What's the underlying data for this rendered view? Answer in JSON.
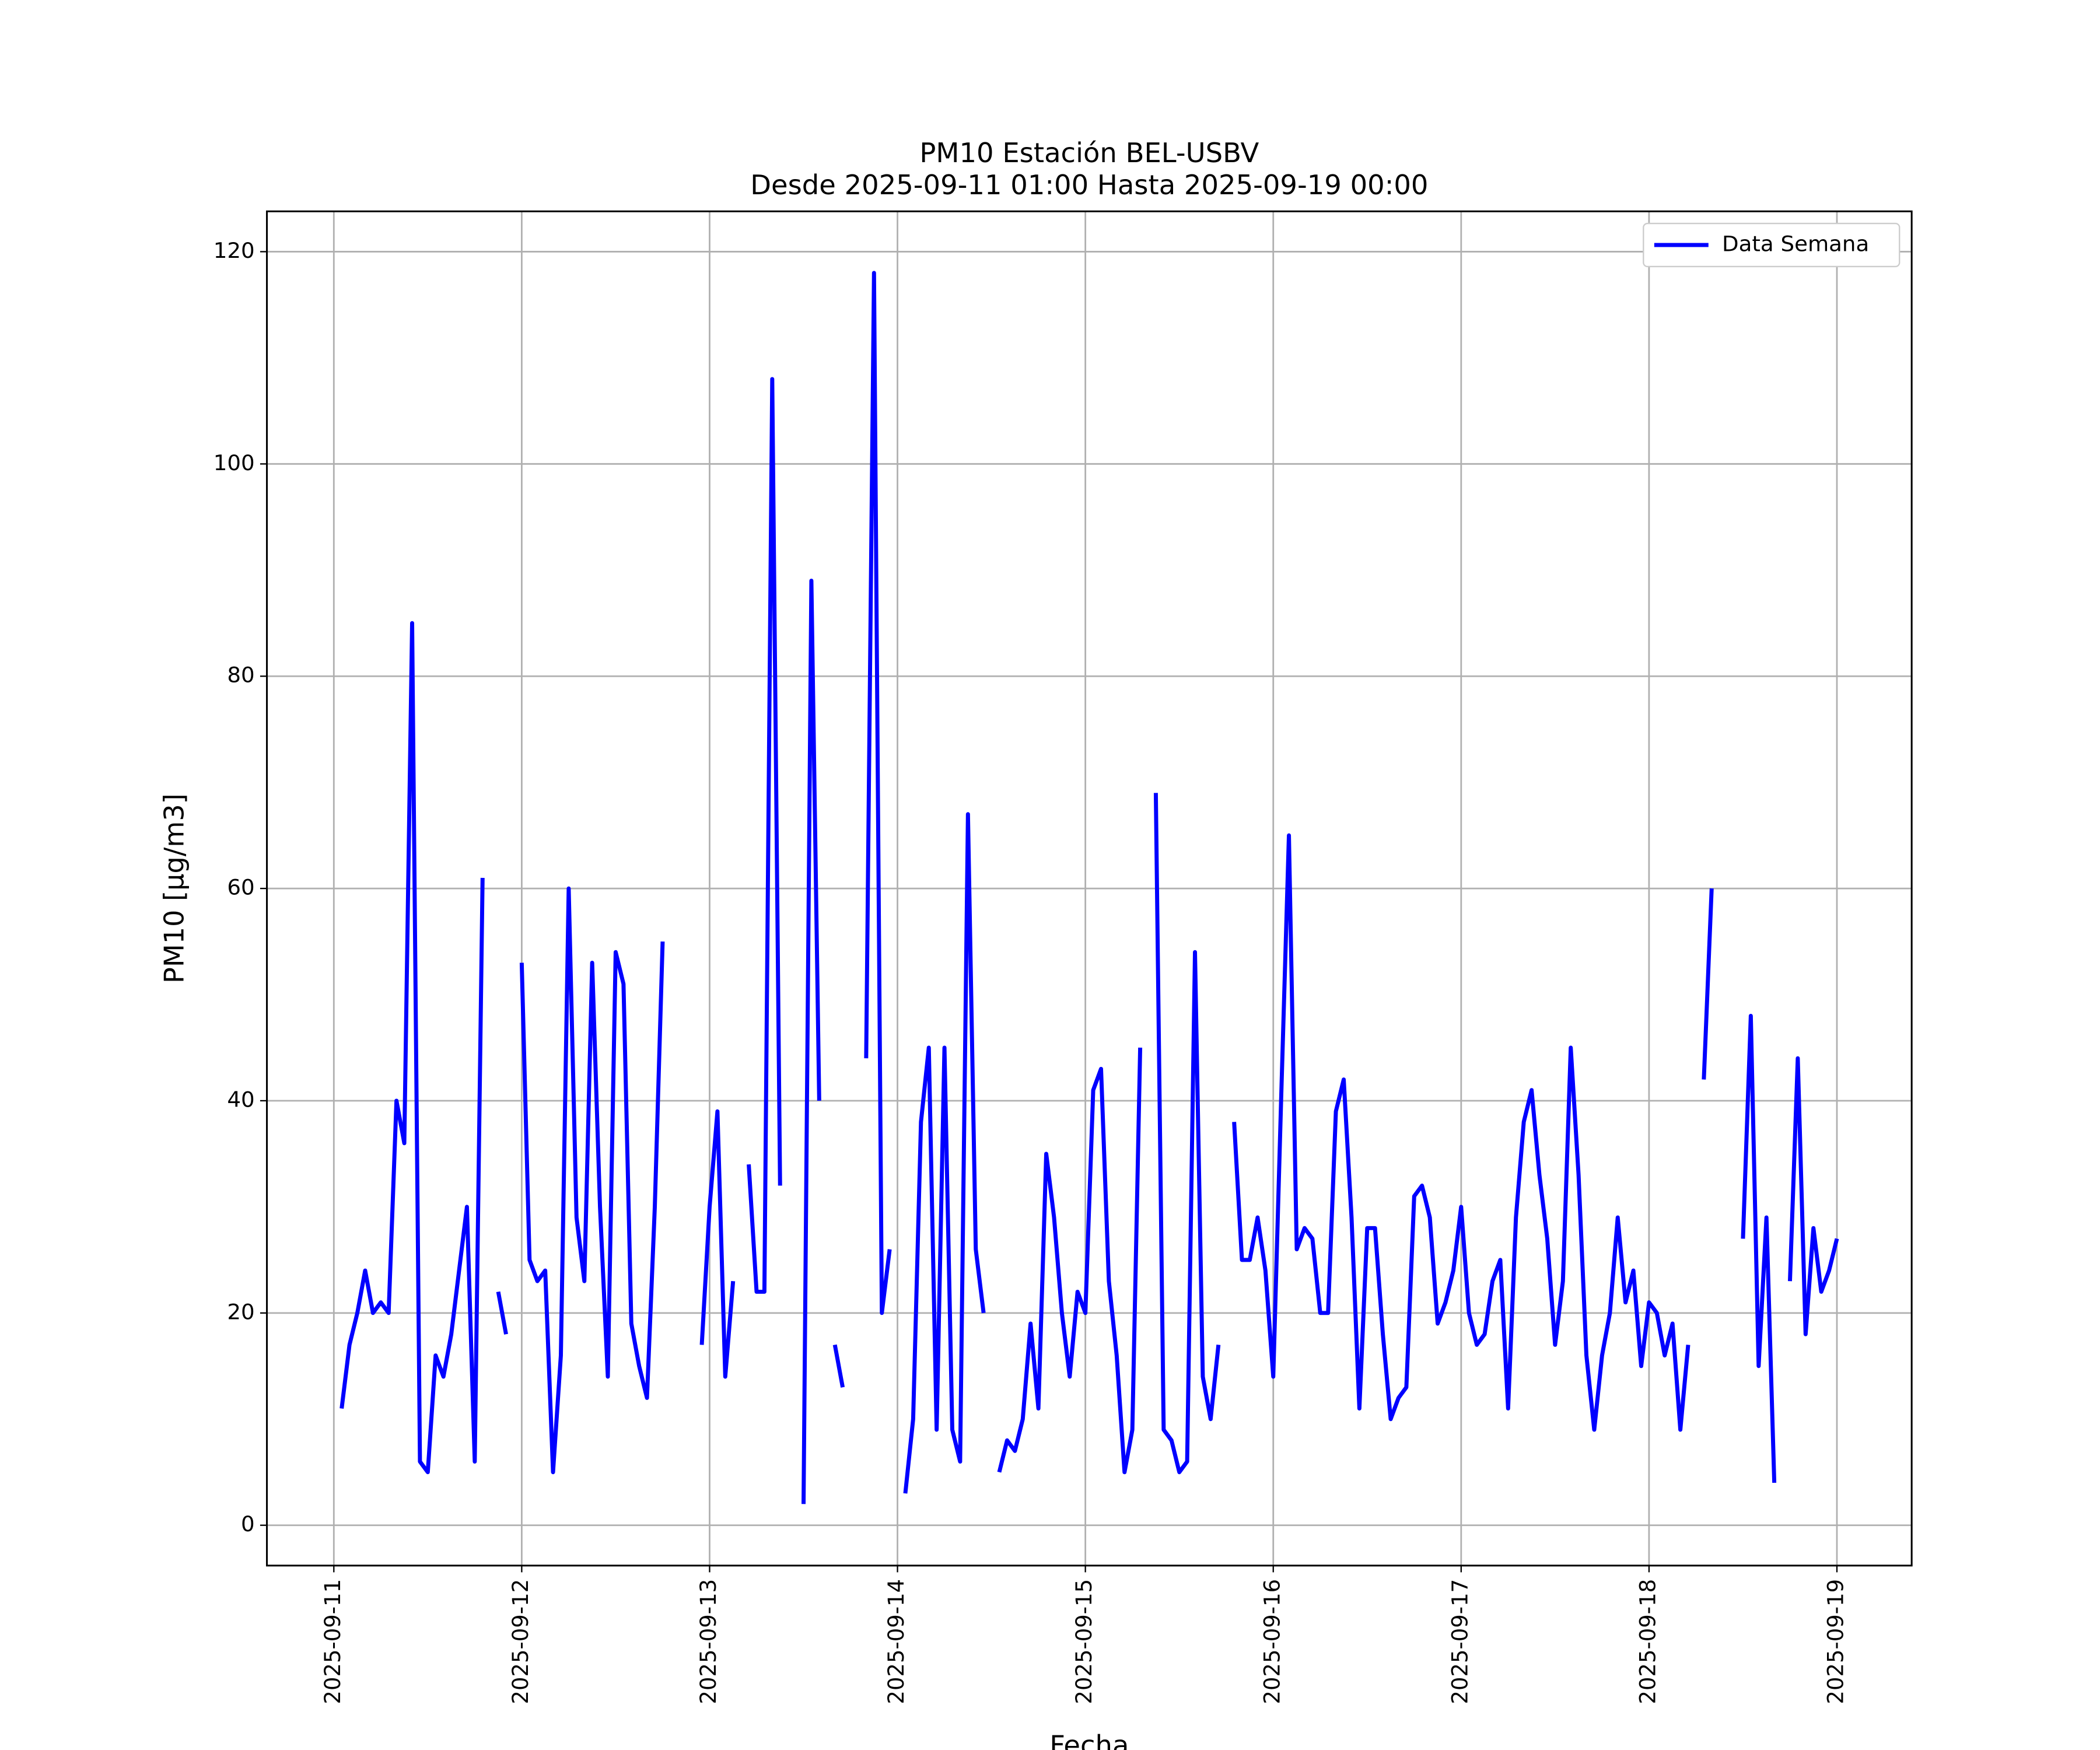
{
  "chart_data": {
    "type": "line",
    "title": "PM10 Estación BEL-USBV",
    "subtitle": "Desde 2025-09-11 01:00 Hasta 2025-09-19 00:00",
    "x_label": "Fecha",
    "y_label": "PM10 [μg/m3]",
    "x": [
      "2025-09-11 01:00",
      "2025-09-11 02:00",
      "2025-09-11 03:00",
      "2025-09-11 04:00",
      "2025-09-11 05:00",
      "2025-09-11 06:00",
      "2025-09-11 07:00",
      "2025-09-11 08:00",
      "2025-09-11 09:00",
      "2025-09-11 10:00",
      "2025-09-11 11:00",
      "2025-09-11 12:00",
      "2025-09-11 13:00",
      "2025-09-11 14:00",
      "2025-09-11 15:00",
      "2025-09-11 16:00",
      "2025-09-11 17:00",
      "2025-09-11 18:00",
      "2025-09-11 19:00",
      "2025-09-11 20:00",
      "2025-09-11 21:00",
      "2025-09-11 22:00",
      "2025-09-11 23:00",
      "2025-09-12 00:00",
      "2025-09-12 01:00",
      "2025-09-12 02:00",
      "2025-09-12 03:00",
      "2025-09-12 04:00",
      "2025-09-12 05:00",
      "2025-09-12 06:00",
      "2025-09-12 07:00",
      "2025-09-12 08:00",
      "2025-09-12 09:00",
      "2025-09-12 10:00",
      "2025-09-12 11:00",
      "2025-09-12 12:00",
      "2025-09-12 13:00",
      "2025-09-12 14:00",
      "2025-09-12 15:00",
      "2025-09-12 16:00",
      "2025-09-12 17:00",
      "2025-09-12 18:00",
      "2025-09-12 19:00",
      "2025-09-12 20:00",
      "2025-09-12 21:00",
      "2025-09-12 22:00",
      "2025-09-12 23:00",
      "2025-09-13 00:00",
      "2025-09-13 01:00",
      "2025-09-13 02:00",
      "2025-09-13 03:00",
      "2025-09-13 04:00",
      "2025-09-13 05:00",
      "2025-09-13 06:00",
      "2025-09-13 07:00",
      "2025-09-13 08:00",
      "2025-09-13 09:00",
      "2025-09-13 10:00",
      "2025-09-13 11:00",
      "2025-09-13 12:00",
      "2025-09-13 13:00",
      "2025-09-13 14:00",
      "2025-09-13 15:00",
      "2025-09-13 16:00",
      "2025-09-13 17:00",
      "2025-09-13 18:00",
      "2025-09-13 19:00",
      "2025-09-13 20:00",
      "2025-09-13 21:00",
      "2025-09-13 22:00",
      "2025-09-13 23:00",
      "2025-09-14 00:00",
      "2025-09-14 01:00",
      "2025-09-14 02:00",
      "2025-09-14 03:00",
      "2025-09-14 04:00",
      "2025-09-14 05:00",
      "2025-09-14 06:00",
      "2025-09-14 07:00",
      "2025-09-14 08:00",
      "2025-09-14 09:00",
      "2025-09-14 10:00",
      "2025-09-14 11:00",
      "2025-09-14 12:00",
      "2025-09-14 13:00",
      "2025-09-14 14:00",
      "2025-09-14 15:00",
      "2025-09-14 16:00",
      "2025-09-14 17:00",
      "2025-09-14 18:00",
      "2025-09-14 19:00",
      "2025-09-14 20:00",
      "2025-09-14 21:00",
      "2025-09-14 22:00",
      "2025-09-14 23:00",
      "2025-09-15 00:00",
      "2025-09-15 01:00",
      "2025-09-15 02:00",
      "2025-09-15 03:00",
      "2025-09-15 04:00",
      "2025-09-15 05:00",
      "2025-09-15 06:00",
      "2025-09-15 07:00",
      "2025-09-15 08:00",
      "2025-09-15 09:00",
      "2025-09-15 10:00",
      "2025-09-15 11:00",
      "2025-09-15 12:00",
      "2025-09-15 13:00",
      "2025-09-15 14:00",
      "2025-09-15 15:00",
      "2025-09-15 16:00",
      "2025-09-15 17:00",
      "2025-09-15 18:00",
      "2025-09-15 19:00",
      "2025-09-15 20:00",
      "2025-09-15 21:00",
      "2025-09-15 22:00",
      "2025-09-15 23:00",
      "2025-09-16 00:00",
      "2025-09-16 01:00",
      "2025-09-16 02:00",
      "2025-09-16 03:00",
      "2025-09-16 04:00",
      "2025-09-16 05:00",
      "2025-09-16 06:00",
      "2025-09-16 07:00",
      "2025-09-16 08:00",
      "2025-09-16 09:00",
      "2025-09-16 10:00",
      "2025-09-16 11:00",
      "2025-09-16 12:00",
      "2025-09-16 13:00",
      "2025-09-16 14:00",
      "2025-09-16 15:00",
      "2025-09-16 16:00",
      "2025-09-16 17:00",
      "2025-09-16 18:00",
      "2025-09-16 19:00",
      "2025-09-16 20:00",
      "2025-09-16 21:00",
      "2025-09-16 22:00",
      "2025-09-16 23:00",
      "2025-09-17 00:00",
      "2025-09-17 01:00",
      "2025-09-17 02:00",
      "2025-09-17 03:00",
      "2025-09-17 04:00",
      "2025-09-17 05:00",
      "2025-09-17 06:00",
      "2025-09-17 07:00",
      "2025-09-17 08:00",
      "2025-09-17 09:00",
      "2025-09-17 10:00",
      "2025-09-17 11:00",
      "2025-09-17 12:00",
      "2025-09-17 13:00",
      "2025-09-17 14:00",
      "2025-09-17 15:00",
      "2025-09-17 16:00",
      "2025-09-17 17:00",
      "2025-09-17 18:00",
      "2025-09-17 19:00",
      "2025-09-17 20:00",
      "2025-09-17 21:00",
      "2025-09-17 22:00",
      "2025-09-17 23:00",
      "2025-09-18 00:00",
      "2025-09-18 01:00",
      "2025-09-18 02:00",
      "2025-09-18 03:00",
      "2025-09-18 04:00",
      "2025-09-18 05:00",
      "2025-09-18 06:00",
      "2025-09-18 07:00",
      "2025-09-18 08:00",
      "2025-09-18 09:00",
      "2025-09-18 10:00",
      "2025-09-18 11:00",
      "2025-09-18 12:00",
      "2025-09-18 13:00",
      "2025-09-18 14:00",
      "2025-09-18 15:00",
      "2025-09-18 16:00",
      "2025-09-18 17:00",
      "2025-09-18 18:00",
      "2025-09-18 19:00",
      "2025-09-18 20:00",
      "2025-09-18 21:00",
      "2025-09-18 22:00",
      "2025-09-18 23:00",
      "2025-09-19 00:00"
    ],
    "series": [
      {
        "name": "Data Semana",
        "color": "#0000ff",
        "values": [
          11,
          17,
          20,
          24,
          20,
          21,
          20,
          40,
          36,
          85,
          6,
          5,
          16,
          14,
          18,
          24,
          30,
          6,
          61,
          null,
          22,
          18,
          null,
          53,
          25,
          23,
          24,
          5,
          16,
          60,
          29,
          23,
          53,
          30,
          14,
          54,
          51,
          19,
          15,
          12,
          30,
          55,
          null,
          null,
          null,
          null,
          17,
          30,
          39,
          14,
          23,
          null,
          34,
          22,
          22,
          108,
          32,
          null,
          null,
          2,
          89,
          40,
          null,
          17,
          13,
          null,
          null,
          44,
          118,
          20,
          26,
          null,
          3,
          10,
          38,
          45,
          9,
          45,
          9,
          6,
          67,
          26,
          20,
          null,
          5,
          8,
          7,
          10,
          19,
          11,
          35,
          29,
          20,
          14,
          22,
          20,
          41,
          43,
          23,
          16,
          5,
          9,
          45,
          null,
          69,
          9,
          8,
          5,
          6,
          54,
          14,
          10,
          17,
          null,
          38,
          25,
          25,
          29,
          24,
          14,
          40,
          65,
          26,
          28,
          27,
          20,
          20,
          39,
          42,
          29,
          11,
          28,
          28,
          18,
          10,
          12,
          13,
          31,
          32,
          29,
          19,
          21,
          24,
          30,
          20,
          17,
          18,
          23,
          25,
          11,
          29,
          38,
          41,
          33,
          27,
          17,
          23,
          45,
          33,
          16,
          9,
          16,
          20,
          29,
          21,
          24,
          15,
          21,
          20,
          16,
          19,
          9,
          17,
          null,
          42,
          60,
          null,
          null,
          null,
          27,
          48,
          15,
          29,
          4,
          null,
          23,
          44,
          18,
          28,
          22,
          24,
          27
        ]
      }
    ],
    "xlim": [
      "2025-09-10 15:27",
      "2025-09-19 09:33"
    ],
    "xticks": [
      "2025-09-11",
      "2025-09-12",
      "2025-09-13",
      "2025-09-14",
      "2025-09-15",
      "2025-09-16",
      "2025-09-17",
      "2025-09-18",
      "2025-09-19"
    ],
    "ylim": [
      -3.8,
      123.8
    ],
    "yticks": [
      0,
      20,
      40,
      60,
      80,
      100,
      120
    ],
    "grid": true,
    "legend": "upper right"
  }
}
